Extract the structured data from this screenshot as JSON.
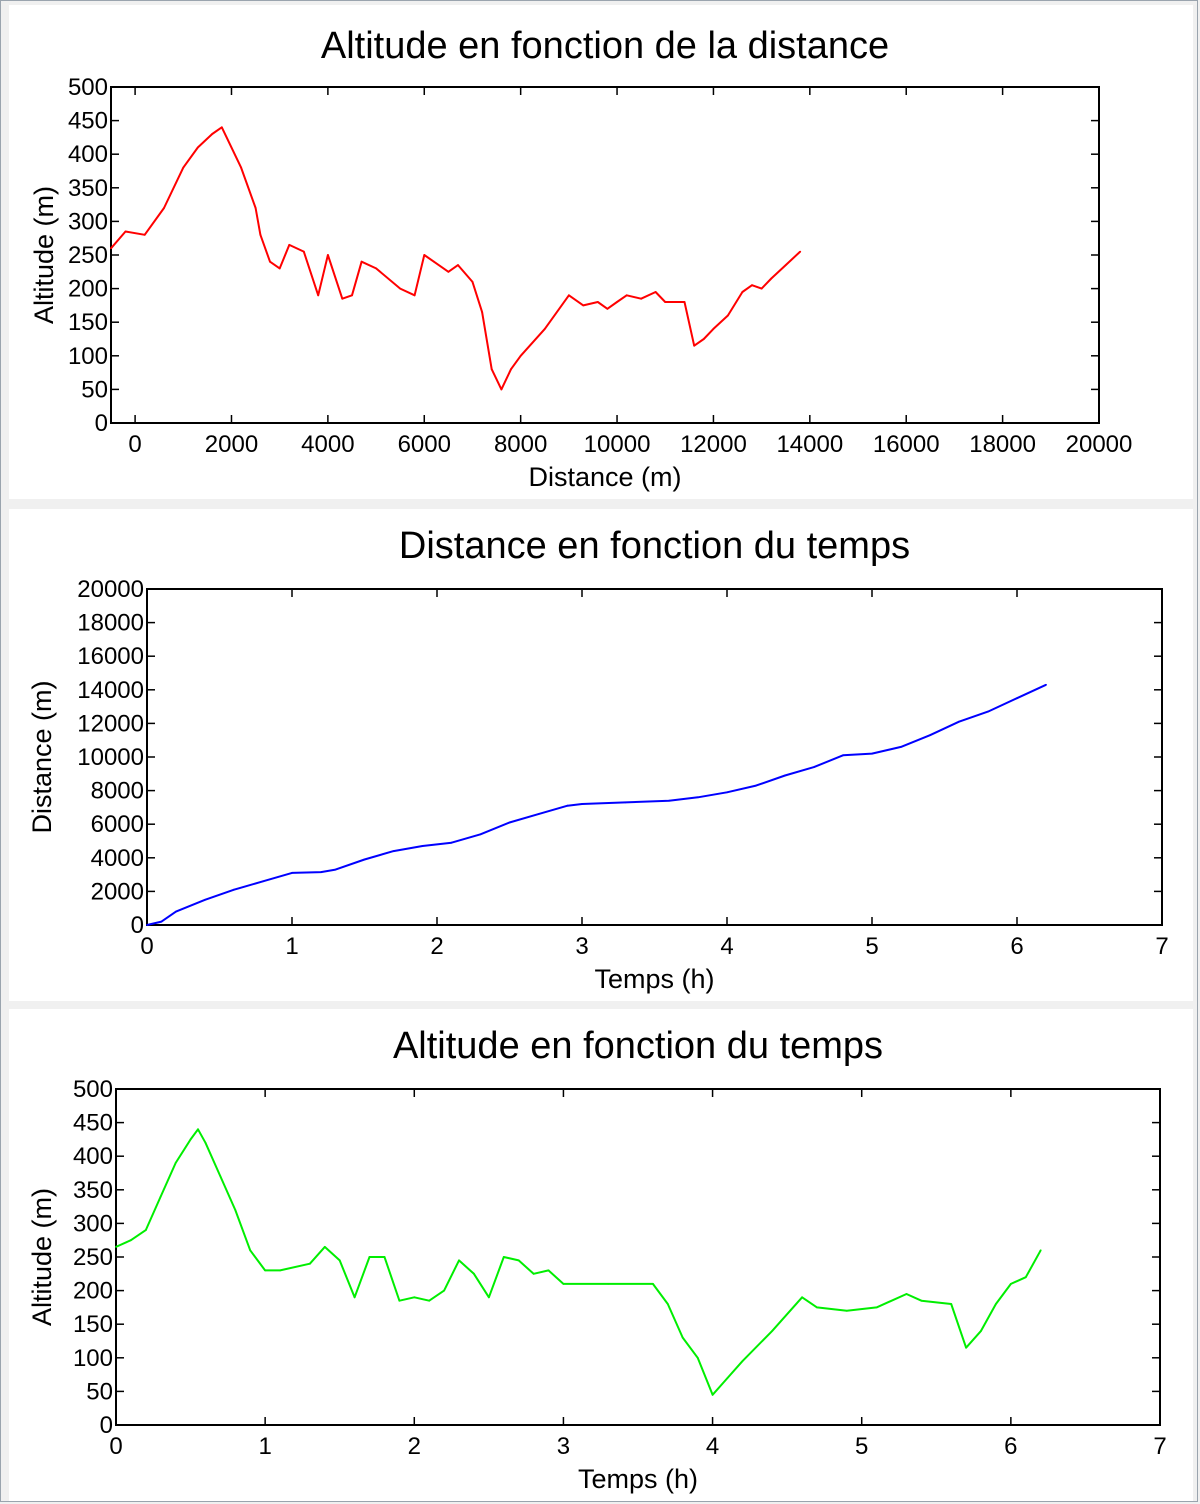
{
  "chart_data": [
    {
      "type": "line",
      "title": "Altitude en fonction de la distance",
      "xlabel": "Distance (m)",
      "ylabel": "Altitude (m)",
      "xlim": [
        -500,
        20000
      ],
      "ylim": [
        0,
        500
      ],
      "xticks": [
        0,
        2000,
        4000,
        6000,
        8000,
        10000,
        12000,
        14000,
        16000,
        18000,
        20000
      ],
      "yticks": [
        0,
        50,
        100,
        150,
        200,
        250,
        300,
        350,
        400,
        450,
        500
      ],
      "grid": false,
      "color": "#ff0000",
      "x": [
        -500,
        -200,
        200,
        600,
        1000,
        1300,
        1600,
        1800,
        2200,
        2500,
        2600,
        2800,
        3000,
        3200,
        3500,
        3800,
        4000,
        4300,
        4500,
        4700,
        5000,
        5500,
        5800,
        6000,
        6200,
        6500,
        6700,
        7000,
        7200,
        7400,
        7600,
        7800,
        8000,
        8500,
        9000,
        9300,
        9600,
        9800,
        10000,
        10200,
        10500,
        10800,
        11000,
        11300,
        11400,
        11600,
        11800,
        12000,
        12300,
        12600,
        12800,
        13000,
        13200,
        13500,
        13800
      ],
      "y": [
        260,
        285,
        280,
        320,
        380,
        410,
        430,
        440,
        380,
        320,
        280,
        240,
        230,
        265,
        255,
        190,
        250,
        185,
        190,
        240,
        230,
        200,
        190,
        250,
        240,
        225,
        235,
        210,
        165,
        80,
        50,
        80,
        100,
        140,
        190,
        175,
        180,
        170,
        180,
        190,
        185,
        195,
        180,
        180,
        180,
        115,
        125,
        140,
        160,
        195,
        205,
        200,
        215,
        235,
        255
      ],
      "line_width": 2
    },
    {
      "type": "line",
      "title": "Distance en fonction du temps",
      "xlabel": "Temps (h)",
      "ylabel": "Distance (m)",
      "xlim": [
        0,
        7
      ],
      "ylim": [
        0,
        20000
      ],
      "xticks": [
        0,
        1,
        2,
        3,
        4,
        5,
        6,
        7
      ],
      "yticks": [
        0,
        2000,
        4000,
        6000,
        8000,
        10000,
        12000,
        14000,
        16000,
        18000,
        20000
      ],
      "grid": false,
      "color": "#0000ff",
      "x": [
        0,
        0.1,
        0.2,
        0.4,
        0.6,
        0.8,
        1.0,
        1.2,
        1.3,
        1.5,
        1.7,
        1.9,
        2.1,
        2.3,
        2.5,
        2.7,
        2.9,
        3.0,
        3.3,
        3.6,
        3.8,
        4.0,
        4.2,
        4.4,
        4.6,
        4.8,
        5.0,
        5.2,
        5.4,
        5.6,
        5.8,
        6.0,
        6.2
      ],
      "y": [
        0,
        200,
        800,
        1500,
        2100,
        2600,
        3100,
        3150,
        3300,
        3900,
        4400,
        4700,
        4900,
        5400,
        6100,
        6600,
        7100,
        7200,
        7300,
        7400,
        7600,
        7900,
        8300,
        8900,
        9400,
        10100,
        10200,
        10600,
        11300,
        12100,
        12700,
        13500,
        14300
      ],
      "line_width": 2
    },
    {
      "type": "line",
      "title": "Altitude en fonction du temps",
      "xlabel": "Temps (h)",
      "ylabel": "Altitude (m)",
      "xlim": [
        0,
        7
      ],
      "ylim": [
        0,
        500
      ],
      "xticks": [
        0,
        1,
        2,
        3,
        4,
        5,
        6,
        7
      ],
      "yticks": [
        0,
        50,
        100,
        150,
        200,
        250,
        300,
        350,
        400,
        450,
        500
      ],
      "grid": false,
      "color": "#00ee00",
      "x": [
        0,
        0.1,
        0.2,
        0.3,
        0.4,
        0.5,
        0.55,
        0.6,
        0.7,
        0.8,
        0.9,
        1.0,
        1.1,
        1.3,
        1.4,
        1.5,
        1.6,
        1.7,
        1.8,
        1.9,
        2.0,
        2.1,
        2.2,
        2.3,
        2.4,
        2.5,
        2.6,
        2.7,
        2.8,
        2.9,
        3.0,
        3.3,
        3.6,
        3.7,
        3.8,
        3.9,
        4.0,
        4.1,
        4.2,
        4.4,
        4.6,
        4.7,
        4.9,
        5.1,
        5.3,
        5.4,
        5.6,
        5.7,
        5.8,
        5.9,
        6.0,
        6.1,
        6.2
      ],
      "y": [
        265,
        275,
        290,
        340,
        390,
        425,
        440,
        420,
        370,
        320,
        260,
        230,
        230,
        240,
        265,
        245,
        190,
        250,
        250,
        185,
        190,
        185,
        200,
        245,
        225,
        190,
        250,
        245,
        225,
        230,
        210,
        210,
        210,
        180,
        130,
        100,
        45,
        70,
        95,
        140,
        190,
        175,
        170,
        175,
        195,
        185,
        180,
        115,
        140,
        180,
        210,
        220,
        260
      ],
      "line_width": 2
    }
  ]
}
